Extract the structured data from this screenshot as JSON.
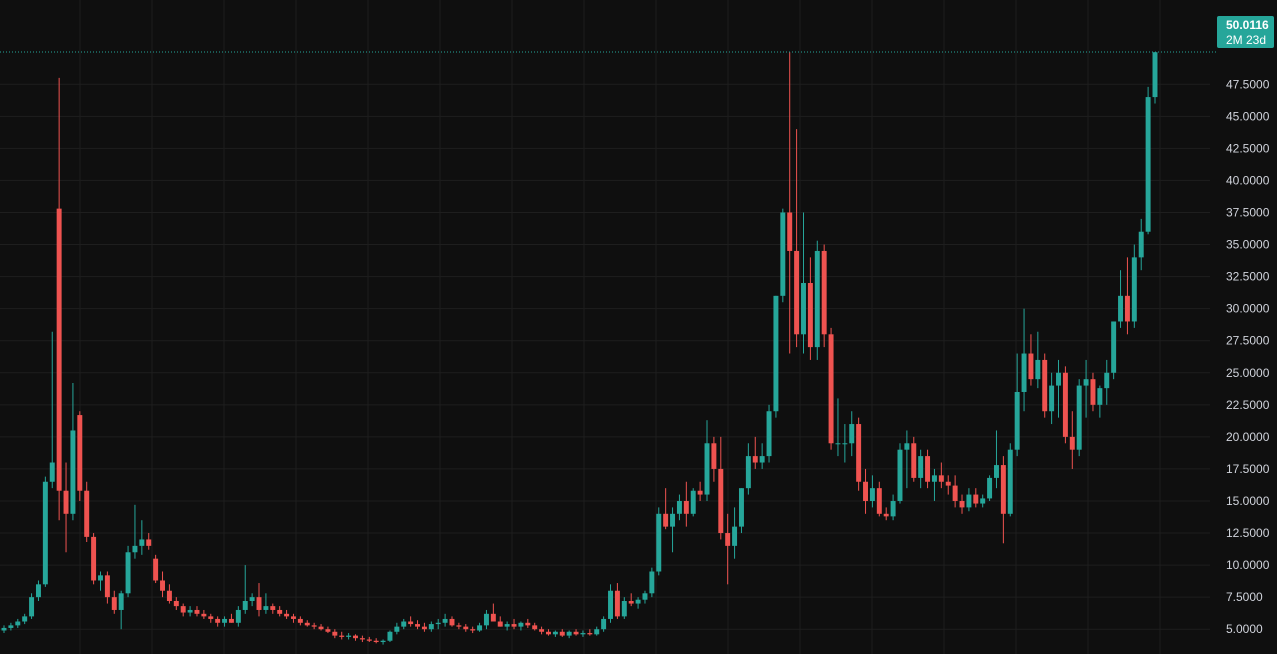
{
  "colors": {
    "background": "#0f0f0f",
    "grid": "#1e1e1e",
    "up": "#26a69a",
    "down": "#ef5350",
    "axis_text": "#d1d4dc",
    "price_line": "#26a69a"
  },
  "last_price": {
    "value_text": "50.0116",
    "countdown_text": "2M 23d",
    "value": 50.0116
  },
  "chart_data": {
    "type": "candlestick",
    "ylim": [
      3.3,
      52.2
    ],
    "grid": true,
    "y_ticks": [
      {
        "value": 5,
        "label": "5.0000"
      },
      {
        "value": 7.5,
        "label": "7.5000"
      },
      {
        "value": 10,
        "label": "10.0000"
      },
      {
        "value": 12.5,
        "label": "12.5000"
      },
      {
        "value": 15,
        "label": "15.0000"
      },
      {
        "value": 17.5,
        "label": "17.5000"
      },
      {
        "value": 20,
        "label": "20.0000"
      },
      {
        "value": 22.5,
        "label": "22.5000"
      },
      {
        "value": 25,
        "label": "25.0000"
      },
      {
        "value": 27.5,
        "label": "27.5000"
      },
      {
        "value": 30,
        "label": "30.0000"
      },
      {
        "value": 32.5,
        "label": "32.5000"
      },
      {
        "value": 35,
        "label": "35.0000"
      },
      {
        "value": 37.5,
        "label": "37.5000"
      },
      {
        "value": 40,
        "label": "40.0000"
      },
      {
        "value": 42.5,
        "label": "42.5000"
      },
      {
        "value": 45,
        "label": "45.0000"
      },
      {
        "value": 47.5,
        "label": "47.5000"
      }
    ],
    "candles": [
      [
        4.9,
        5.3,
        4.7,
        5.1
      ],
      [
        5.1,
        5.5,
        4.9,
        5.3
      ],
      [
        5.3,
        5.8,
        5.1,
        5.6
      ],
      [
        5.6,
        6.2,
        5.4,
        6.0
      ],
      [
        6.0,
        7.8,
        5.8,
        7.5
      ],
      [
        7.5,
        8.8,
        7.2,
        8.5
      ],
      [
        8.5,
        16.9,
        8.3,
        16.5
      ],
      [
        16.5,
        28.2,
        16.0,
        18.0
      ],
      [
        37.8,
        48.0,
        13.5,
        15.8
      ],
      [
        15.8,
        18.0,
        11.0,
        14.0
      ],
      [
        14.0,
        24.2,
        13.5,
        20.5
      ],
      [
        21.7,
        22.0,
        15.0,
        15.8
      ],
      [
        15.8,
        16.5,
        11.8,
        12.2
      ],
      [
        12.2,
        12.5,
        8.5,
        8.8
      ],
      [
        8.8,
        9.5,
        8.0,
        9.2
      ],
      [
        9.2,
        9.5,
        7.0,
        7.5
      ],
      [
        7.5,
        8.0,
        6.2,
        6.5
      ],
      [
        6.5,
        8.0,
        5.0,
        7.8
      ],
      [
        7.8,
        11.5,
        7.5,
        11.0
      ],
      [
        11.0,
        14.7,
        10.5,
        11.5
      ],
      [
        11.5,
        13.5,
        10.8,
        12.0
      ],
      [
        12.0,
        12.5,
        11.2,
        11.5
      ],
      [
        10.5,
        10.8,
        8.6,
        8.8
      ],
      [
        8.8,
        9.5,
        7.5,
        8.0
      ],
      [
        8.0,
        8.5,
        7.0,
        7.2
      ],
      [
        7.2,
        7.5,
        6.5,
        6.8
      ],
      [
        6.8,
        7.0,
        6.0,
        6.3
      ],
      [
        6.3,
        6.8,
        6.0,
        6.5
      ],
      [
        6.5,
        6.8,
        6.0,
        6.2
      ],
      [
        6.2,
        6.5,
        5.8,
        6.0
      ],
      [
        6.0,
        6.2,
        5.5,
        5.8
      ],
      [
        5.8,
        6.0,
        5.2,
        5.5
      ],
      [
        5.5,
        6.0,
        5.2,
        5.8
      ],
      [
        5.8,
        6.2,
        5.5,
        5.5
      ],
      [
        5.5,
        6.8,
        5.2,
        6.5
      ],
      [
        6.5,
        10.0,
        6.2,
        7.2
      ],
      [
        7.2,
        7.8,
        6.8,
        7.5
      ],
      [
        7.5,
        8.6,
        6.0,
        6.5
      ],
      [
        6.5,
        7.8,
        6.2,
        6.8
      ],
      [
        6.8,
        7.0,
        6.2,
        6.5
      ],
      [
        6.5,
        6.8,
        6.0,
        6.2
      ],
      [
        6.2,
        6.5,
        5.8,
        6.0
      ],
      [
        6.0,
        6.2,
        5.5,
        5.8
      ],
      [
        5.8,
        6.0,
        5.3,
        5.5
      ],
      [
        5.5,
        5.7,
        5.2,
        5.3
      ],
      [
        5.3,
        5.5,
        5.0,
        5.2
      ],
      [
        5.2,
        5.4,
        4.9,
        5.0
      ],
      [
        5.0,
        5.2,
        4.7,
        4.8
      ],
      [
        4.8,
        5.0,
        4.3,
        4.5
      ],
      [
        4.5,
        4.8,
        4.2,
        4.4
      ],
      [
        4.4,
        4.7,
        4.2,
        4.5
      ],
      [
        4.5,
        4.6,
        4.1,
        4.3
      ],
      [
        4.3,
        4.5,
        4.0,
        4.2
      ],
      [
        4.2,
        4.4,
        4.0,
        4.1
      ],
      [
        4.1,
        4.3,
        3.9,
        4.0
      ],
      [
        4.0,
        4.2,
        3.8,
        4.1
      ],
      [
        4.1,
        4.9,
        4.0,
        4.8
      ],
      [
        4.8,
        5.5,
        4.6,
        5.2
      ],
      [
        5.2,
        5.8,
        5.0,
        5.6
      ],
      [
        5.6,
        6.0,
        5.2,
        5.4
      ],
      [
        5.4,
        5.7,
        5.0,
        5.2
      ],
      [
        5.2,
        5.5,
        4.8,
        5.0
      ],
      [
        5.0,
        5.6,
        4.8,
        5.4
      ],
      [
        5.4,
        5.8,
        5.0,
        5.5
      ],
      [
        5.5,
        6.2,
        5.2,
        5.8
      ],
      [
        5.8,
        6.0,
        5.2,
        5.3
      ],
      [
        5.3,
        5.5,
        5.0,
        5.2
      ],
      [
        5.2,
        5.4,
        4.8,
        5.0
      ],
      [
        5.0,
        5.2,
        4.7,
        4.9
      ],
      [
        4.9,
        5.5,
        4.8,
        5.3
      ],
      [
        5.3,
        6.5,
        5.0,
        6.2
      ],
      [
        6.2,
        7.0,
        5.8,
        5.6
      ],
      [
        5.6,
        6.0,
        5.2,
        5.2
      ],
      [
        5.2,
        5.6,
        4.9,
        5.4
      ],
      [
        5.4,
        5.8,
        5.0,
        5.2
      ],
      [
        5.2,
        5.6,
        4.9,
        5.5
      ],
      [
        5.5,
        5.8,
        5.1,
        5.3
      ],
      [
        5.3,
        5.5,
        4.9,
        5.0
      ],
      [
        5.0,
        5.2,
        4.6,
        4.8
      ],
      [
        4.8,
        5.0,
        4.5,
        4.6
      ],
      [
        4.6,
        4.9,
        4.4,
        4.8
      ],
      [
        4.8,
        5.0,
        4.4,
        4.5
      ],
      [
        4.5,
        4.9,
        4.3,
        4.8
      ],
      [
        4.8,
        5.0,
        4.5,
        4.6
      ],
      [
        4.6,
        4.9,
        4.4,
        4.7
      ],
      [
        4.7,
        5.0,
        4.5,
        4.6
      ],
      [
        4.6,
        5.2,
        4.5,
        5.0
      ],
      [
        5.0,
        6.0,
        4.8,
        5.8
      ],
      [
        5.8,
        8.5,
        5.5,
        8.0
      ],
      [
        8.0,
        8.6,
        5.8,
        6.0
      ],
      [
        6.0,
        7.5,
        5.8,
        7.2
      ],
      [
        7.2,
        7.8,
        6.8,
        7.0
      ],
      [
        7.0,
        7.5,
        6.6,
        7.3
      ],
      [
        7.3,
        8.0,
        7.0,
        7.8
      ],
      [
        7.8,
        9.8,
        7.5,
        9.5
      ],
      [
        9.5,
        14.5,
        9.2,
        14.0
      ],
      [
        14.0,
        16.0,
        12.8,
        13.0
      ],
      [
        13.0,
        14.5,
        11.0,
        14.0
      ],
      [
        14.0,
        15.5,
        13.5,
        15.0
      ],
      [
        15.0,
        16.5,
        13.0,
        14.0
      ],
      [
        14.0,
        16.0,
        13.8,
        15.8
      ],
      [
        15.8,
        16.5,
        15.0,
        15.5
      ],
      [
        15.5,
        21.3,
        15.0,
        19.5
      ],
      [
        19.5,
        20.0,
        16.5,
        17.5
      ],
      [
        17.5,
        20.0,
        12.0,
        12.5
      ],
      [
        12.5,
        14.0,
        8.5,
        11.5
      ],
      [
        11.5,
        14.5,
        10.5,
        13.0
      ],
      [
        13.0,
        16.0,
        12.5,
        16.0
      ],
      [
        16.0,
        19.5,
        15.5,
        18.5
      ],
      [
        18.5,
        20.0,
        17.5,
        18.0
      ],
      [
        18.0,
        19.5,
        17.5,
        18.5
      ],
      [
        18.5,
        22.5,
        18.0,
        22.0
      ],
      [
        22.0,
        31.0,
        21.5,
        31.0
      ],
      [
        31.0,
        37.8,
        30.5,
        37.5
      ],
      [
        37.5,
        50.0,
        26.5,
        34.5
      ],
      [
        34.5,
        44.0,
        27.0,
        28.0
      ],
      [
        28.0,
        37.5,
        26.5,
        32.0
      ],
      [
        32.0,
        34.0,
        26.0,
        27.0
      ],
      [
        27.0,
        35.3,
        26.0,
        34.5
      ],
      [
        34.5,
        35.0,
        27.0,
        28.0
      ],
      [
        28.0,
        28.5,
        19.0,
        19.5
      ],
      [
        19.5,
        23.0,
        18.5,
        19.5
      ],
      [
        19.5,
        21.0,
        18.0,
        19.5
      ],
      [
        19.5,
        22.0,
        18.5,
        21.0
      ],
      [
        21.0,
        21.5,
        15.8,
        16.5
      ],
      [
        16.5,
        17.5,
        14.0,
        15.0
      ],
      [
        15.0,
        17.0,
        14.5,
        16.0
      ],
      [
        16.0,
        16.5,
        13.8,
        14.0
      ],
      [
        14.0,
        14.5,
        13.5,
        13.8
      ],
      [
        13.8,
        15.5,
        13.5,
        15.0
      ],
      [
        15.0,
        19.5,
        14.8,
        19.0
      ],
      [
        19.0,
        20.5,
        16.0,
        19.5
      ],
      [
        19.5,
        20.0,
        16.5,
        16.8
      ],
      [
        16.8,
        19.0,
        16.0,
        18.5
      ],
      [
        18.5,
        19.0,
        16.0,
        16.5
      ],
      [
        16.5,
        17.5,
        15.0,
        17.0
      ],
      [
        17.0,
        18.0,
        16.0,
        16.5
      ],
      [
        16.5,
        17.0,
        15.5,
        16.2
      ],
      [
        16.2,
        17.0,
        14.5,
        15.0
      ],
      [
        15.0,
        15.5,
        14.0,
        14.5
      ],
      [
        14.5,
        16.0,
        14.2,
        15.5
      ],
      [
        15.5,
        16.0,
        14.5,
        14.8
      ],
      [
        14.8,
        15.5,
        14.5,
        15.2
      ],
      [
        15.2,
        17.0,
        15.0,
        16.8
      ],
      [
        16.8,
        20.5,
        16.0,
        17.8
      ],
      [
        17.8,
        18.5,
        11.7,
        14.0
      ],
      [
        14.0,
        19.5,
        13.8,
        19.0
      ],
      [
        19.0,
        26.5,
        18.5,
        23.5
      ],
      [
        23.5,
        30.0,
        22.0,
        26.5
      ],
      [
        26.5,
        28.0,
        24.0,
        24.5
      ],
      [
        24.5,
        28.2,
        23.8,
        26.0
      ],
      [
        26.0,
        26.5,
        21.5,
        22.0
      ],
      [
        22.0,
        25.0,
        21.0,
        24.0
      ],
      [
        24.0,
        26.0,
        21.5,
        25.0
      ],
      [
        25.0,
        25.5,
        19.5,
        20.0
      ],
      [
        20.0,
        22.0,
        17.5,
        19.0
      ],
      [
        19.0,
        24.5,
        18.5,
        24.0
      ],
      [
        24.0,
        26.0,
        21.5,
        24.5
      ],
      [
        24.5,
        25.0,
        22.0,
        22.5
      ],
      [
        22.5,
        24.0,
        21.5,
        23.8
      ],
      [
        23.8,
        26.0,
        22.5,
        25.0
      ],
      [
        25.0,
        29.0,
        24.5,
        29.0
      ],
      [
        29.0,
        33.0,
        28.5,
        31.0
      ],
      [
        31.0,
        34.0,
        28.0,
        29.0
      ],
      [
        29.0,
        35.0,
        28.5,
        34.0
      ],
      [
        34.0,
        37.0,
        33.0,
        36.0
      ],
      [
        36.0,
        47.3,
        35.8,
        46.5
      ],
      [
        46.5,
        50.0,
        46.0,
        50.0
      ]
    ]
  }
}
